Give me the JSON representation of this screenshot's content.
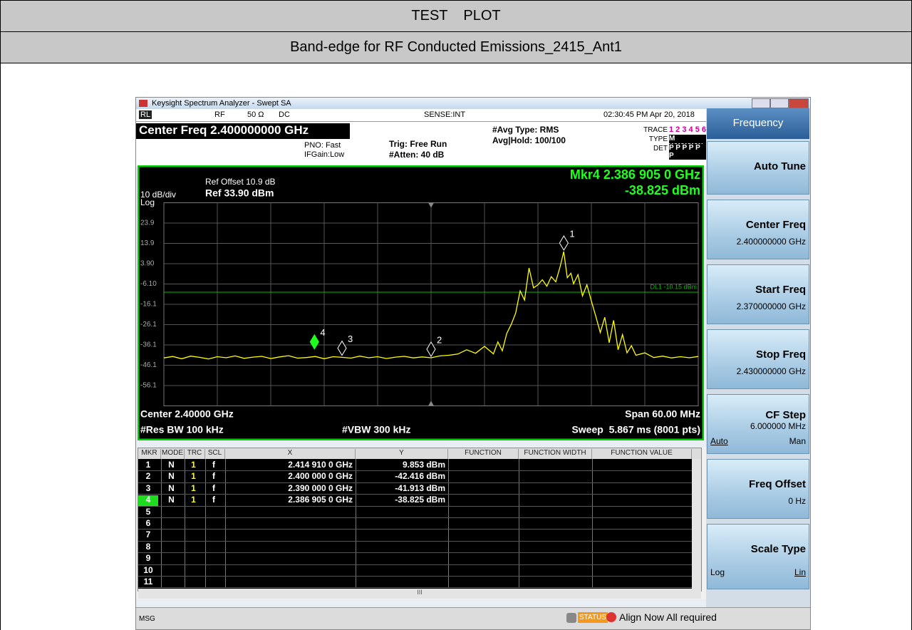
{
  "header": {
    "title": "TEST    PLOT",
    "subtitle": "Band-edge for RF Conducted Emissions_2415_Ant1"
  },
  "window": {
    "title": "Keysight Spectrum Analyzer - Swept SA"
  },
  "status_row": {
    "rl": "RL",
    "rf": "RF",
    "impedance": "50 Ω",
    "coupling": "DC",
    "sense": "SENSE:INT",
    "time": "02:30:45 PM Apr 20, 2018"
  },
  "settings": {
    "center_freq": "Center Freq 2.400000000 GHz",
    "pno": "PNO: Fast",
    "ifgain": "IFGain:Low",
    "trig": "Trig: Free Run",
    "atten": "#Atten: 40 dB",
    "avg_type": "#Avg Type: RMS",
    "avg_hold": "Avg|Hold: 100/100",
    "trace_label": "TRACE",
    "trace_values": "1 2 3 4 5 6",
    "type_label": "TYPE",
    "type_values": "M WWWWW",
    "det_label": "DET",
    "det_values": "P P P P P P"
  },
  "chart_data": {
    "type": "line",
    "color": "#ffff00",
    "ref_offset": "Ref Offset 10.9 dB",
    "scale": "10 dB/div",
    "ref_level": "Ref 33.90 dBm",
    "scale_type": "Log",
    "marker_readout": "Mkr4 2.386 905 0 GHz",
    "marker_readout_value": "-38.825 dBm",
    "center": "Center 2.40000 GHz",
    "span": "Span 60.00 MHz",
    "rbw": "#Res BW 100 kHz",
    "vbw": "#VBW 300 kHz",
    "sweep": "Sweep  5.867 ms (8001 pts)",
    "xlim": [
      2.37,
      2.43
    ],
    "ylim": [
      -66.1,
      33.9
    ],
    "yticks": [
      23.9,
      13.9,
      {
        "value": 3.9,
        "label": "3.90"
      },
      {
        "value": -6.1,
        "label": "-6.10"
      },
      -16.1,
      -26.1,
      -36.1,
      -46.1,
      -56.1
    ],
    "grid": true,
    "display_line": {
      "label": "DL1 -10.15 dBm",
      "value": -10.15,
      "color": "#00c000"
    },
    "x": [
      2.37,
      2.371,
      2.372,
      2.373,
      2.374,
      2.375,
      2.376,
      2.377,
      2.378,
      2.379,
      2.38,
      2.381,
      2.382,
      2.383,
      2.384,
      2.385,
      2.386,
      2.387,
      2.388,
      2.389,
      2.39,
      2.391,
      2.392,
      2.393,
      2.394,
      2.395,
      2.396,
      2.397,
      2.398,
      2.399,
      2.4,
      2.401,
      2.402,
      2.403,
      2.404,
      2.405,
      2.406,
      2.407,
      2.4075,
      2.408,
      2.4085,
      2.409,
      2.4095,
      2.41,
      2.4105,
      2.411,
      2.4115,
      2.412,
      2.4125,
      2.413,
      2.4135,
      2.414,
      2.4145,
      2.4149,
      2.4153,
      2.4157,
      2.416,
      2.4165,
      2.417,
      2.4175,
      2.418,
      2.4185,
      2.419,
      2.4195,
      2.42,
      2.4205,
      2.421,
      2.4215,
      2.422,
      2.4225,
      2.423,
      2.424,
      2.425,
      2.426,
      2.427,
      2.428,
      2.429,
      2.43
    ],
    "values": [
      -42.5,
      -41.8,
      -42.9,
      -41.6,
      -42.2,
      -43.0,
      -41.9,
      -42.4,
      -41.5,
      -42.7,
      -42.1,
      -41.7,
      -42.8,
      -42.0,
      -41.4,
      -42.6,
      -42.3,
      -41.8,
      -42.9,
      -41.9,
      -42.2,
      -42.6,
      -41.6,
      -42.4,
      -41.9,
      -42.8,
      -42.1,
      -41.7,
      -42.5,
      -42.0,
      -42.4,
      -41.5,
      -41.2,
      -40.6,
      -38.5,
      -40.2,
      -36.8,
      -40.5,
      -34.6,
      -39.0,
      -30.5,
      -26.0,
      -20.5,
      -9.5,
      -14.0,
      1.8,
      -8.0,
      -6.5,
      -4.0,
      -7.2,
      -2.5,
      -5.0,
      2.5,
      9.85,
      -3.0,
      -0.8,
      -6.0,
      -1.5,
      -12.0,
      -6.5,
      -14.5,
      -22.0,
      -30.0,
      -22.5,
      -35.0,
      -24.0,
      -38.5,
      -31.0,
      -40.0,
      -36.5,
      -41.2,
      -40.0,
      -42.3,
      -41.6,
      -42.5,
      -41.9,
      -42.4,
      -41.8
    ],
    "markers": [
      {
        "label": "1",
        "x": 2.41491,
        "y": 9.853
      },
      {
        "label": "2",
        "x": 2.4,
        "y": -42.416
      },
      {
        "label": "3",
        "x": 2.39,
        "y": -41.913
      },
      {
        "label": "4",
        "x": 2.386905,
        "y": -38.825,
        "active": true
      }
    ]
  },
  "marker_table": {
    "headers": [
      "MKR",
      "MODE",
      "TRC",
      "SCL",
      "X",
      "Y",
      "FUNCTION",
      "FUNCTION WIDTH",
      "FUNCTION VALUE"
    ],
    "rows": [
      [
        "1",
        "N",
        "1",
        "f",
        "2.414 910 0 GHz",
        "9.853 dBm"
      ],
      [
        "2",
        "N",
        "1",
        "f",
        "2.400 000 0 GHz",
        "-42.416 dBm"
      ],
      [
        "3",
        "N",
        "1",
        "f",
        "2.390 000 0 GHz",
        "-41.913 dBm"
      ],
      [
        "4",
        "N",
        "1",
        "f",
        "2.386 905 0 GHz",
        "-38.825 dBm"
      ],
      [
        "5"
      ],
      [
        "6"
      ],
      [
        "7"
      ],
      [
        "8"
      ],
      [
        "9"
      ],
      [
        "10"
      ],
      [
        "11"
      ]
    ],
    "scroll_mark": "III"
  },
  "softkeys": {
    "menu": "Frequency",
    "auto_tune": "Auto Tune",
    "center_freq": "Center Freq",
    "center_freq_value": "2.400000000 GHz",
    "start_freq": "Start Freq",
    "start_freq_value": "2.370000000 GHz",
    "stop_freq": "Stop Freq",
    "stop_freq_value": "2.430000000 GHz",
    "cf_step": "CF Step",
    "cf_step_value": "6.000000 MHz",
    "cf_auto": "Auto",
    "cf_man": "Man",
    "freq_offset": "Freq Offset",
    "freq_offset_value": "0 Hz",
    "scale_type": "Scale Type",
    "scale_log": "Log",
    "scale_lin": "Lin"
  },
  "message_bar": {
    "msg": "MSG",
    "status": "STATUS",
    "alert": "Align Now All required"
  }
}
